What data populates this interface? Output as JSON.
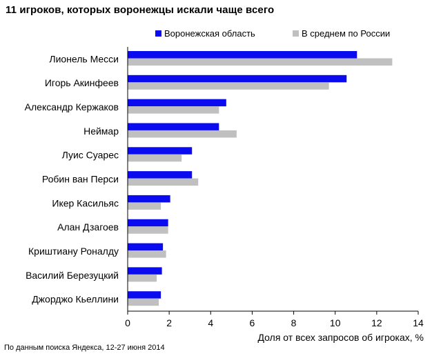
{
  "title": "11 игроков, которых воронежцы искали чаще всего",
  "source_note": "По данным  поиска Яндекса,  12-27 июня  2014",
  "colors": {
    "voronezh": "#0b0bf0",
    "russia": "#c0c0c0",
    "axis": "#000000",
    "grid": "#d9d9d9"
  },
  "chart_data": {
    "type": "bar",
    "orientation": "horizontal",
    "categories": [
      "Лионель Месси",
      "Игорь Акинфеев",
      "Александр Кержаков",
      "Неймар",
      "Луис Суарес",
      "Робин ван Перси",
      "Икер Касильяс",
      "Алан Дзагоев",
      "Криштиану Роналду",
      "Василий Березуцкий",
      "Джорджо Кьеллини"
    ],
    "series": [
      {
        "name": "Воронежская область",
        "values": [
          11.05,
          10.55,
          4.75,
          4.4,
          3.1,
          3.1,
          2.05,
          1.95,
          1.7,
          1.65,
          1.6
        ]
      },
      {
        "name": "В среднем по России",
        "values": [
          12.75,
          9.7,
          4.4,
          5.25,
          2.6,
          3.4,
          1.6,
          1.95,
          1.85,
          1.4,
          1.5
        ]
      }
    ],
    "xlabel": "Доля от всех запросов об игроках, %",
    "xlim": [
      0,
      14
    ],
    "xticks": [
      "0",
      "2",
      "4",
      "6",
      "8",
      "10",
      "12",
      "14"
    ],
    "legend_position": "top",
    "grid": false
  }
}
